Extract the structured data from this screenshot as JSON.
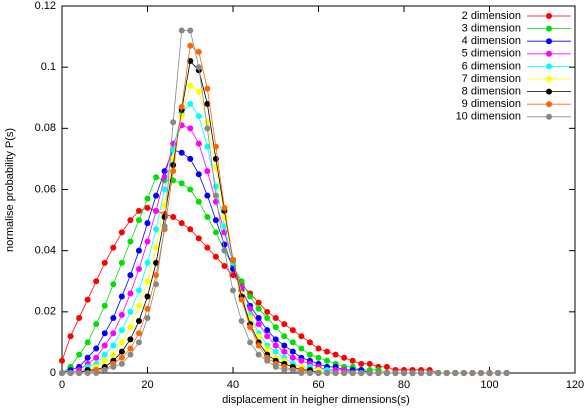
{
  "chart_data": {
    "type": "line",
    "x_label": "displacement in heigher dimensions(s)",
    "y_label": "normalise probability P(s)",
    "xlim": [
      0,
      120
    ],
    "ylim": [
      0,
      0.12
    ],
    "xticks": [
      0,
      20,
      40,
      60,
      80,
      100,
      120
    ],
    "yticks": [
      0,
      0.02,
      0.04,
      0.06,
      0.08,
      0.1,
      0.12
    ],
    "legend": "top-right",
    "x": [
      0,
      2,
      4,
      6,
      8,
      10,
      12,
      14,
      16,
      18,
      20,
      22,
      24,
      26,
      28,
      30,
      32,
      34,
      36,
      38,
      40,
      42,
      44,
      46,
      48,
      50,
      52,
      54,
      56,
      58,
      60,
      62,
      64,
      66,
      68,
      70,
      72,
      74,
      76,
      78,
      80,
      82,
      84,
      86,
      88,
      90,
      92,
      94,
      96,
      98,
      100,
      102,
      104
    ],
    "series": [
      {
        "name": "2 dimension",
        "color": "#ff0000",
        "values": [
          0.004,
          0.012,
          0.018,
          0.024,
          0.03,
          0.036,
          0.041,
          0.046,
          0.05,
          0.053,
          0.054,
          0.053,
          0.052,
          0.051,
          0.049,
          0.047,
          0.044,
          0.041,
          0.038,
          0.035,
          0.032,
          0.029,
          0.026,
          0.023,
          0.02,
          0.018,
          0.016,
          0.014,
          0.012,
          0.01,
          0.008,
          0.007,
          0.006,
          0.005,
          0.004,
          0.003,
          0.003,
          0.002,
          0.002,
          0.001,
          0.001,
          0.001,
          0.001,
          0.001,
          0,
          0,
          0,
          0,
          0,
          0,
          0,
          0,
          0
        ]
      },
      {
        "name": "3 dimension",
        "color": "#00e000",
        "values": [
          0,
          0.002,
          0.006,
          0.01,
          0.016,
          0.022,
          0.029,
          0.036,
          0.043,
          0.05,
          0.057,
          0.064,
          0.063,
          0.063,
          0.062,
          0.06,
          0.056,
          0.051,
          0.046,
          0.04,
          0.035,
          0.03,
          0.025,
          0.021,
          0.018,
          0.015,
          0.012,
          0.01,
          0.008,
          0.006,
          0.005,
          0.004,
          0.003,
          0.002,
          0.002,
          0.001,
          0.001,
          0.001,
          0,
          0,
          0,
          0,
          0,
          0,
          0,
          0,
          0,
          0,
          0,
          0,
          0,
          0,
          0
        ]
      },
      {
        "name": "4 dimension",
        "color": "#0000ff",
        "values": [
          0,
          0.001,
          0.002,
          0.005,
          0.008,
          0.013,
          0.018,
          0.025,
          0.032,
          0.04,
          0.049,
          0.058,
          0.066,
          0.073,
          0.072,
          0.07,
          0.065,
          0.058,
          0.05,
          0.042,
          0.034,
          0.027,
          0.022,
          0.018,
          0.014,
          0.011,
          0.009,
          0.007,
          0.005,
          0.004,
          0.003,
          0.002,
          0.002,
          0.001,
          0.001,
          0.001,
          0,
          0,
          0,
          0,
          0,
          0,
          0,
          0,
          0,
          0,
          0,
          0,
          0,
          0,
          0,
          0,
          0
        ]
      },
      {
        "name": "5 dimension",
        "color": "#ff00ff",
        "values": [
          0,
          0,
          0.001,
          0.003,
          0.005,
          0.009,
          0.013,
          0.019,
          0.026,
          0.034,
          0.043,
          0.053,
          0.064,
          0.075,
          0.081,
          0.08,
          0.075,
          0.066,
          0.056,
          0.046,
          0.036,
          0.028,
          0.021,
          0.016,
          0.012,
          0.009,
          0.007,
          0.005,
          0.004,
          0.003,
          0.002,
          0.001,
          0.001,
          0.001,
          0,
          0,
          0,
          0,
          0,
          0,
          0,
          0,
          0,
          0,
          0,
          0,
          0,
          0,
          0,
          0,
          0,
          0,
          0
        ]
      },
      {
        "name": "6 dimension",
        "color": "#00ffff",
        "values": [
          0,
          0,
          0,
          0.002,
          0.003,
          0.006,
          0.009,
          0.014,
          0.02,
          0.027,
          0.036,
          0.047,
          0.06,
          0.073,
          0.085,
          0.088,
          0.084,
          0.074,
          0.061,
          0.048,
          0.036,
          0.026,
          0.019,
          0.013,
          0.009,
          0.007,
          0.005,
          0.003,
          0.002,
          0.002,
          0.001,
          0.001,
          0,
          0,
          0,
          0,
          0,
          0,
          0,
          0,
          0,
          0,
          0,
          0,
          0,
          0,
          0,
          0,
          0,
          0,
          0,
          0,
          0
        ]
      },
      {
        "name": "7 dimension",
        "color": "#ffff00",
        "values": [
          0,
          0,
          0,
          0.001,
          0.002,
          0.004,
          0.006,
          0.01,
          0.015,
          0.022,
          0.03,
          0.041,
          0.055,
          0.07,
          0.084,
          0.094,
          0.092,
          0.082,
          0.067,
          0.051,
          0.037,
          0.026,
          0.018,
          0.012,
          0.008,
          0.005,
          0.004,
          0.002,
          0.002,
          0.001,
          0.001,
          0,
          0,
          0,
          0,
          0,
          0,
          0,
          0,
          0,
          0,
          0,
          0,
          0,
          0,
          0,
          0,
          0,
          0,
          0,
          0,
          0,
          0
        ]
      },
      {
        "name": "8 dimension",
        "color": "#000000",
        "values": [
          0,
          0,
          0,
          0.001,
          0.001,
          0.002,
          0.004,
          0.007,
          0.011,
          0.017,
          0.025,
          0.036,
          0.051,
          0.068,
          0.086,
          0.102,
          0.099,
          0.088,
          0.07,
          0.053,
          0.037,
          0.025,
          0.016,
          0.01,
          0.006,
          0.004,
          0.003,
          0.002,
          0.001,
          0.001,
          0,
          0,
          0,
          0,
          0,
          0,
          0,
          0,
          0,
          0,
          0,
          0,
          0,
          0,
          0,
          0,
          0,
          0,
          0,
          0,
          0,
          0,
          0
        ]
      },
      {
        "name": "9 dimension",
        "color": "#ff6600",
        "values": [
          0,
          0,
          0,
          0,
          0.001,
          0.001,
          0.003,
          0.005,
          0.008,
          0.013,
          0.021,
          0.032,
          0.047,
          0.066,
          0.087,
          0.107,
          0.105,
          0.093,
          0.074,
          0.054,
          0.037,
          0.024,
          0.015,
          0.009,
          0.005,
          0.003,
          0.002,
          0.001,
          0.001,
          0,
          0,
          0,
          0,
          0,
          0,
          0,
          0,
          0,
          0,
          0,
          0,
          0,
          0,
          0,
          0,
          0,
          0,
          0,
          0,
          0,
          0,
          0,
          0
        ]
      },
      {
        "name": "10 dimension",
        "color": "#888888",
        "values": [
          0,
          0,
          0,
          0,
          0,
          0.001,
          0.002,
          0.003,
          0.006,
          0.01,
          0.018,
          0.029,
          0.048,
          0.082,
          0.112,
          0.112,
          0.1,
          0.08,
          0.058,
          0.04,
          0.027,
          0.017,
          0.01,
          0.006,
          0.004,
          0.002,
          0.001,
          0.001,
          0,
          0,
          0,
          0,
          0,
          0,
          0,
          0,
          0,
          0,
          0,
          0,
          0,
          0,
          0,
          0,
          0,
          0,
          0,
          0,
          0,
          0,
          0,
          0,
          0
        ]
      }
    ]
  }
}
